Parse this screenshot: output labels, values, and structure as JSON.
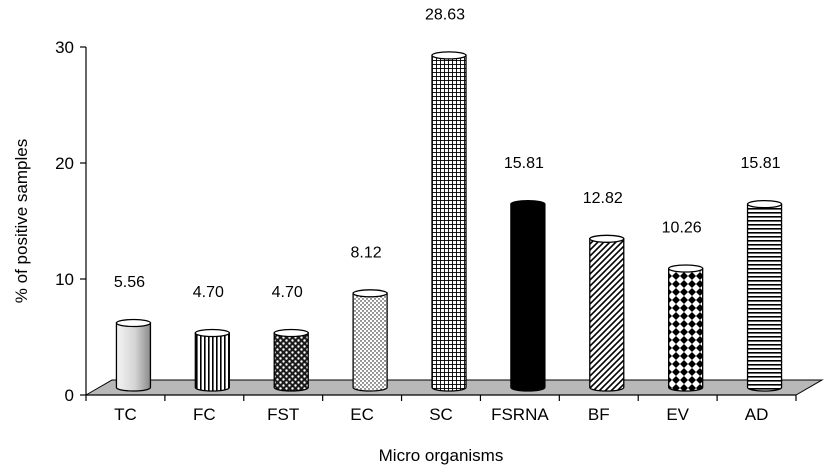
{
  "chart_data": {
    "type": "bar",
    "categories": [
      "TC",
      "FC",
      "FST",
      "EC",
      "SC",
      "FSRNA",
      "BF",
      "EV",
      "AD"
    ],
    "values": [
      5.56,
      4.7,
      4.7,
      8.12,
      28.63,
      15.81,
      12.82,
      10.26,
      15.81
    ],
    "value_labels": [
      "5.56",
      "4.70",
      "4.70",
      "8.12",
      "28.63",
      "15.81",
      "12.82",
      "10.26",
      "15.81"
    ],
    "xlabel": "Micro organisms",
    "ylabel": "% of positive samples",
    "ylim": [
      0,
      30
    ],
    "yticks": [
      "0",
      "10",
      "20",
      "30"
    ],
    "grid": false,
    "legend": "none",
    "bar_style": "3d-cylinder",
    "bar_patterns": [
      "gradient-gray",
      "vertical-lines",
      "dotted-dark",
      "stipple-light",
      "grid-lines",
      "solid-black",
      "diagonal-lines",
      "checkered",
      "horizontal-lines"
    ],
    "floor_color": "#b8b8b8"
  }
}
